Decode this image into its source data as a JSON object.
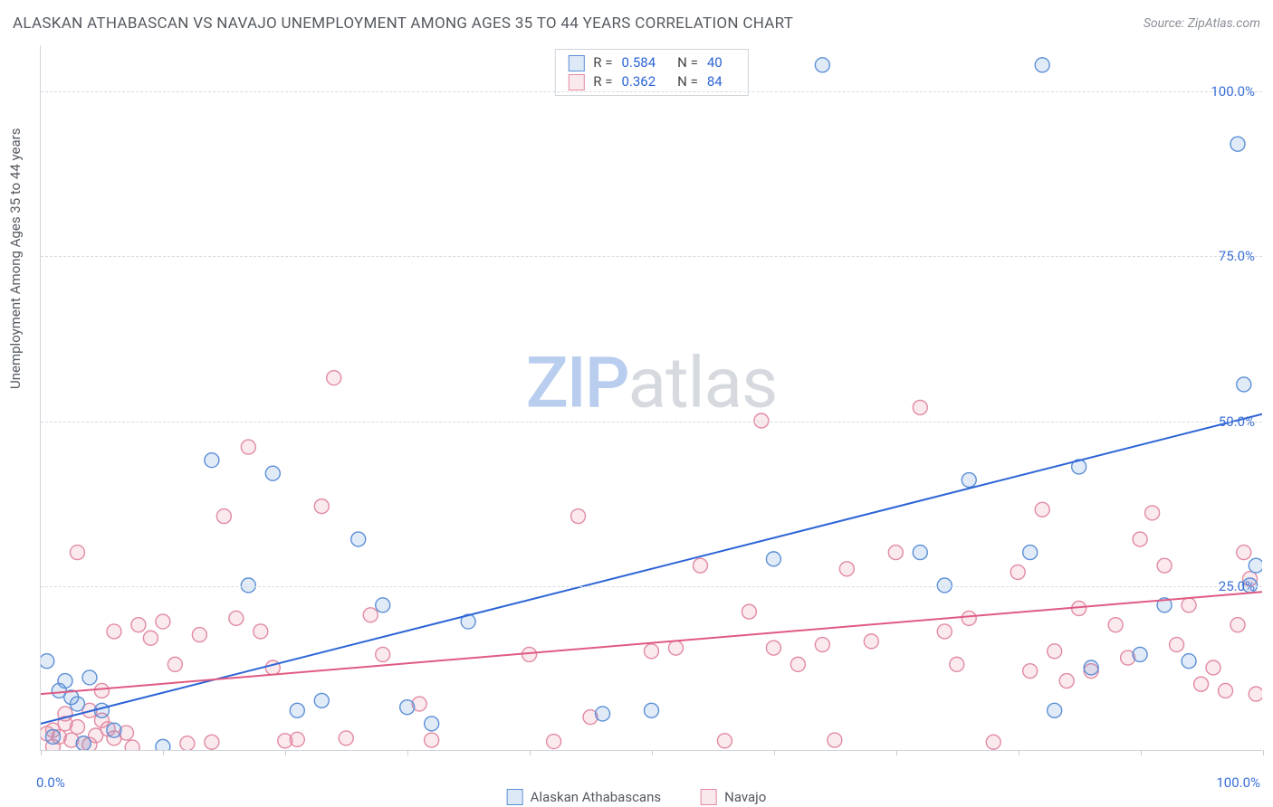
{
  "title": "ALASKAN ATHABASCAN VS NAVAJO UNEMPLOYMENT AMONG AGES 35 TO 44 YEARS CORRELATION CHART",
  "source": "Source: ZipAtlas.com",
  "y_axis_label": "Unemployment Among Ages 35 to 44 years",
  "watermark": {
    "part1": "ZIP",
    "part2": "atlas"
  },
  "chart": {
    "type": "scatter",
    "xlim": [
      0,
      100
    ],
    "ylim": [
      0,
      107
    ],
    "x_ticks": [
      0,
      10,
      20,
      30,
      40,
      50,
      60,
      70,
      80,
      90,
      100
    ],
    "x_tick_labels": {
      "0": "0.0%",
      "100": "100.0%"
    },
    "y_ticks": [
      25,
      50,
      75,
      100
    ],
    "y_tick_labels": [
      "25.0%",
      "50.0%",
      "75.0%",
      "100.0%"
    ],
    "background_color": "#ffffff",
    "grid_color": "#d7dbe0",
    "marker_radius": 8,
    "marker_stroke_width": 1.4,
    "marker_fill_opacity": 0.18,
    "trend_line_width": 2
  },
  "series": [
    {
      "id": "athabascan",
      "label": "Alaskan Athabascans",
      "color": "#5b8fd6",
      "line_color": "#2c64d6",
      "r": 0.584,
      "n": 40,
      "trend": {
        "x1": 0,
        "y1": 4,
        "x2": 100,
        "y2": 51
      },
      "points": [
        [
          0.5,
          13.5
        ],
        [
          1,
          2
        ],
        [
          1.5,
          9
        ],
        [
          2,
          10.5
        ],
        [
          2.5,
          8
        ],
        [
          3,
          7
        ],
        [
          3.5,
          1
        ],
        [
          4,
          11
        ],
        [
          5,
          6
        ],
        [
          6,
          3
        ],
        [
          10,
          0.5
        ],
        [
          14,
          44
        ],
        [
          17,
          25
        ],
        [
          19,
          42
        ],
        [
          21,
          6
        ],
        [
          23,
          7.5
        ],
        [
          26,
          32
        ],
        [
          28,
          22
        ],
        [
          30,
          6.5
        ],
        [
          32,
          4
        ],
        [
          35,
          19.5
        ],
        [
          46,
          5.5
        ],
        [
          50,
          6
        ],
        [
          60,
          29
        ],
        [
          64,
          104
        ],
        [
          72,
          30
        ],
        [
          74,
          25
        ],
        [
          76,
          41
        ],
        [
          81,
          30
        ],
        [
          82,
          104
        ],
        [
          83,
          6
        ],
        [
          85,
          43
        ],
        [
          86,
          12.5
        ],
        [
          90,
          14.5
        ],
        [
          92,
          22
        ],
        [
          94,
          13.5
        ],
        [
          98,
          92
        ],
        [
          98.5,
          55.5
        ],
        [
          99,
          25
        ],
        [
          99.5,
          28
        ]
      ]
    },
    {
      "id": "navajo",
      "label": "Navajo",
      "color": "#e28aa2",
      "line_color": "#e05a82",
      "r": 0.362,
      "n": 84,
      "trend": {
        "x1": 0,
        "y1": 8.5,
        "x2": 100,
        "y2": 24
      },
      "points": [
        [
          0.5,
          2.5
        ],
        [
          1,
          3
        ],
        [
          1,
          0.5
        ],
        [
          1.5,
          2
        ],
        [
          2,
          4
        ],
        [
          2,
          5.5
        ],
        [
          2.5,
          1.5
        ],
        [
          3,
          3.5
        ],
        [
          3,
          30
        ],
        [
          3.5,
          1
        ],
        [
          4,
          0.8
        ],
        [
          4,
          6
        ],
        [
          4.5,
          2.2
        ],
        [
          5,
          4.5
        ],
        [
          5,
          9
        ],
        [
          5.5,
          3.2
        ],
        [
          6,
          1.8
        ],
        [
          6,
          18
        ],
        [
          7,
          2.6
        ],
        [
          7.5,
          0.4
        ],
        [
          8,
          19
        ],
        [
          9,
          17
        ],
        [
          10,
          19.5
        ],
        [
          11,
          13
        ],
        [
          12,
          1
        ],
        [
          13,
          17.5
        ],
        [
          14,
          1.2
        ],
        [
          15,
          35.5
        ],
        [
          16,
          20
        ],
        [
          17,
          46
        ],
        [
          18,
          18
        ],
        [
          19,
          12.5
        ],
        [
          20,
          1.4
        ],
        [
          21,
          1.6
        ],
        [
          23,
          37
        ],
        [
          24,
          56.5
        ],
        [
          25,
          1.8
        ],
        [
          27,
          20.5
        ],
        [
          28,
          14.5
        ],
        [
          31,
          7
        ],
        [
          32,
          1.5
        ],
        [
          40,
          14.5
        ],
        [
          42,
          1.3
        ],
        [
          44,
          35.5
        ],
        [
          45,
          5
        ],
        [
          50,
          15
        ],
        [
          52,
          15.5
        ],
        [
          54,
          28
        ],
        [
          56,
          1.4
        ],
        [
          58,
          21
        ],
        [
          59,
          50
        ],
        [
          60,
          15.5
        ],
        [
          62,
          13
        ],
        [
          64,
          16
        ],
        [
          65,
          1.5
        ],
        [
          66,
          27.5
        ],
        [
          68,
          16.5
        ],
        [
          70,
          30
        ],
        [
          72,
          52
        ],
        [
          74,
          18
        ],
        [
          75,
          13
        ],
        [
          76,
          20
        ],
        [
          78,
          1.2
        ],
        [
          80,
          27
        ],
        [
          81,
          12
        ],
        [
          82,
          36.5
        ],
        [
          83,
          15
        ],
        [
          84,
          10.5
        ],
        [
          85,
          21.5
        ],
        [
          86,
          12
        ],
        [
          88,
          19
        ],
        [
          89,
          14
        ],
        [
          90,
          32
        ],
        [
          91,
          36
        ],
        [
          92,
          28
        ],
        [
          93,
          16
        ],
        [
          94,
          22
        ],
        [
          95,
          10
        ],
        [
          96,
          12.5
        ],
        [
          97,
          9
        ],
        [
          98,
          19
        ],
        [
          98.5,
          30
        ],
        [
          99,
          26
        ],
        [
          99.5,
          8.5
        ]
      ]
    }
  ],
  "legend_top": {
    "r_label": "R =",
    "n_label": "N ="
  }
}
